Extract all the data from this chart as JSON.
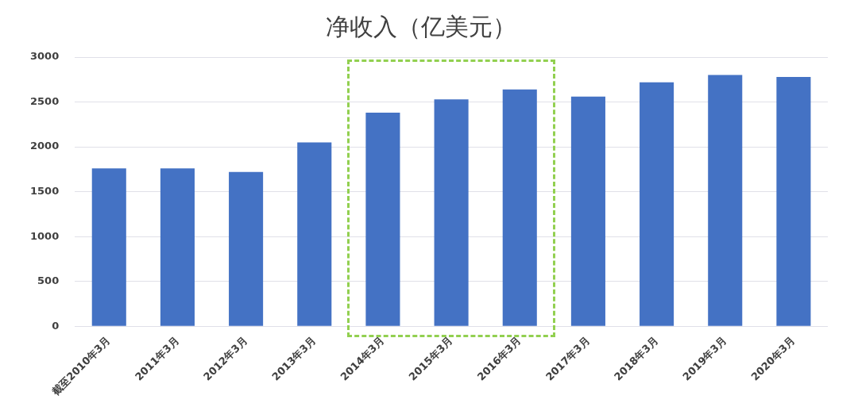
{
  "chart_data": {
    "type": "bar",
    "title": "净收入（亿美元）",
    "categories": [
      "截至2010年3月",
      "2011年3月",
      "2012年3月",
      "2013年3月",
      "2014年3月",
      "2015年3月",
      "2016年3月",
      "2017年3月",
      "2018年3月",
      "2019年3月",
      "2020年3月"
    ],
    "values": [
      1760,
      1760,
      1720,
      2050,
      2380,
      2530,
      2640,
      2560,
      2720,
      2800,
      2780
    ],
    "color": "#4472c4",
    "ylim": [
      0,
      3000
    ],
    "yticks": [
      0,
      500,
      1000,
      1500,
      2000,
      2500,
      3000
    ],
    "grid": "y"
  }
}
